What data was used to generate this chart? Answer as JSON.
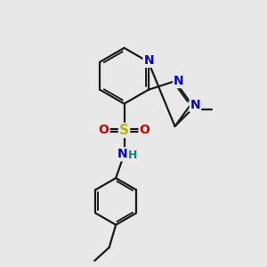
{
  "bg_color": "#e8e8e8",
  "bond_color": "#1a1a1a",
  "bond_width": 1.6,
  "atom_N_color": "#0000cc",
  "atom_S_color": "#b8b800",
  "atom_O_color": "#cc0000",
  "atom_H_color": "#008888",
  "figsize": [
    3.0,
    3.0
  ],
  "dpi": 100,
  "xlim": [
    0,
    10
  ],
  "ylim": [
    0,
    10
  ]
}
